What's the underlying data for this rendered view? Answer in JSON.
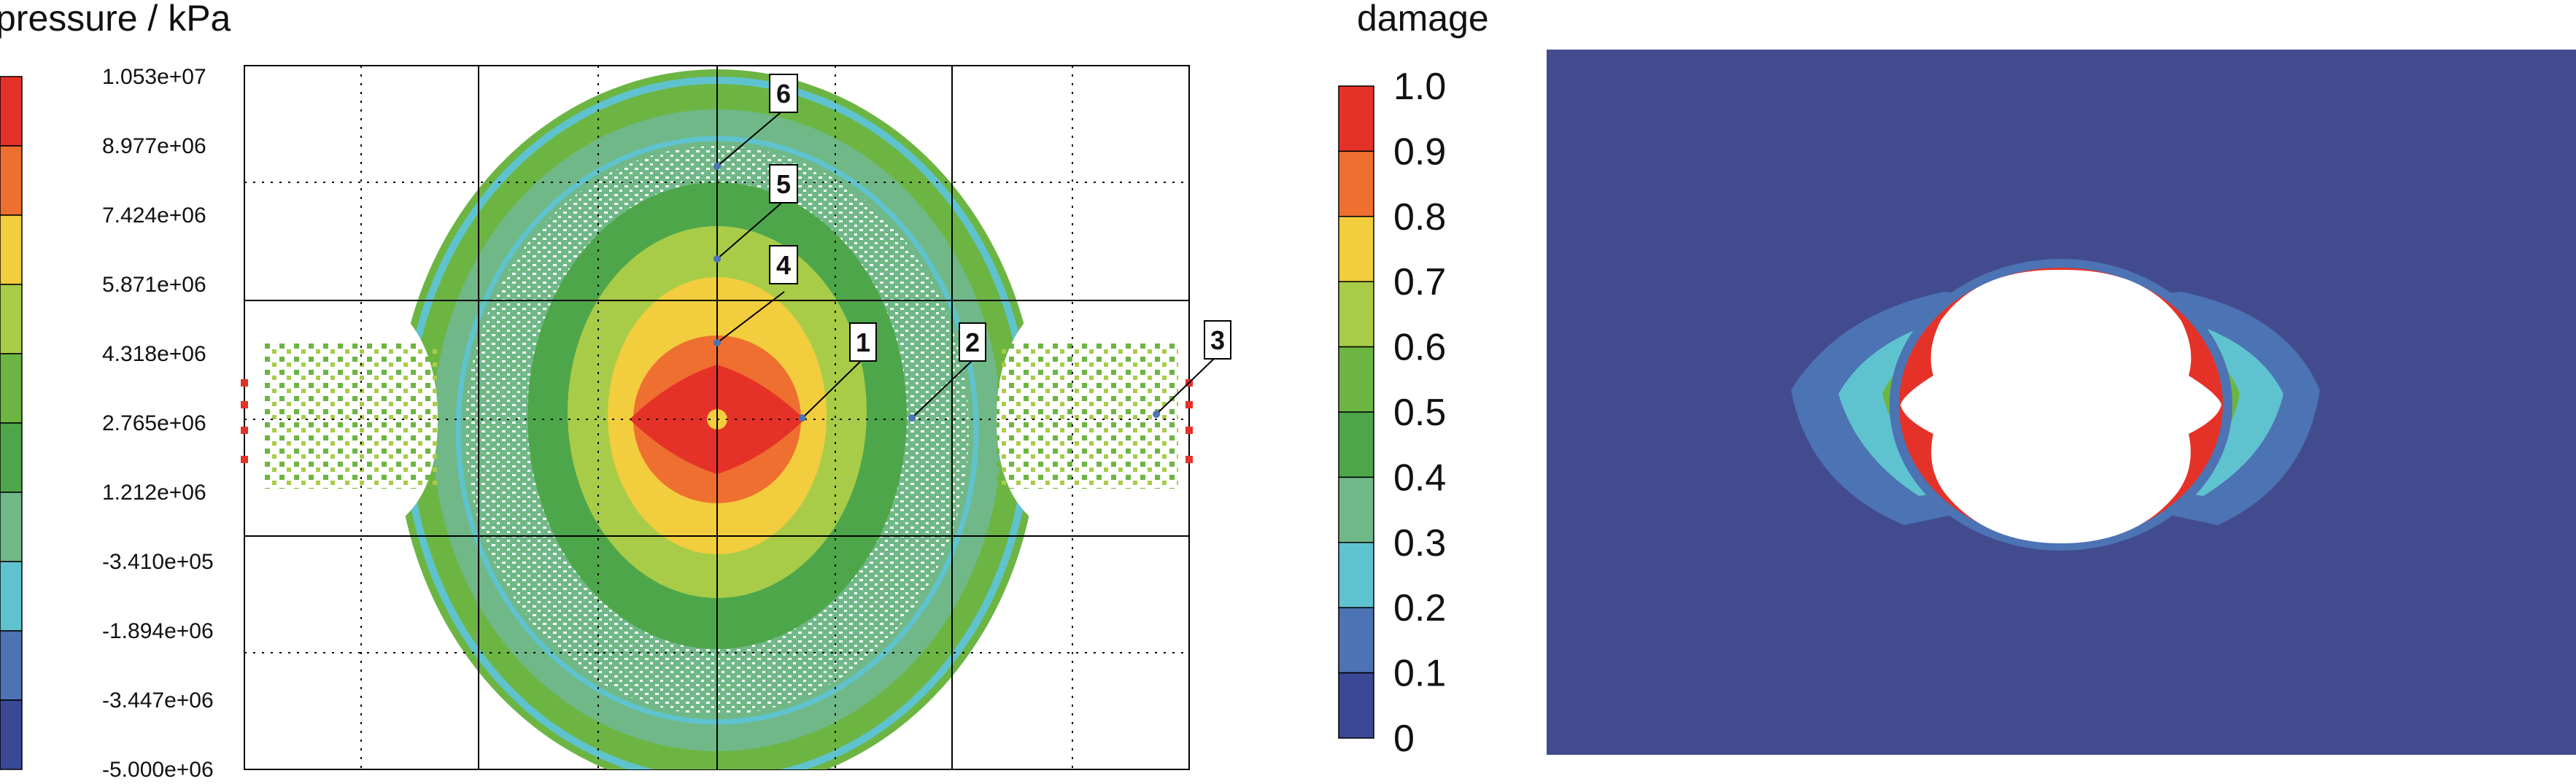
{
  "left_panel": {
    "title": "pressure / kPa",
    "colorbar": {
      "ticks": [
        "1.053e+07",
        "8.977e+06",
        "7.424e+06",
        "5.871e+06",
        "4.318e+06",
        "2.765e+06",
        "1.212e+06",
        "-3.410e+05",
        "-1.894e+06",
        "-3.447e+06",
        "-5.000e+06"
      ],
      "colors": [
        "#e53228",
        "#ee6f30",
        "#f2cd3d",
        "#a8cc48",
        "#6cb543",
        "#4ea64a",
        "#70b887",
        "#5fc3cf",
        "#4c73b4",
        "#3a4896"
      ]
    },
    "markers": [
      "1",
      "2",
      "3",
      "4",
      "5",
      "6"
    ]
  },
  "right_panel": {
    "title": "damage",
    "colorbar": {
      "ticks": [
        "1.0",
        "0.9",
        "0.8",
        "0.7",
        "0.6",
        "0.5",
        "0.4",
        "0.3",
        "0.2",
        "0.1",
        "0"
      ],
      "colors": [
        "#e53228",
        "#ee6f30",
        "#f2cd3d",
        "#a8cc48",
        "#6cb543",
        "#4ea64a",
        "#70b887",
        "#5fc3cf",
        "#4c73b4",
        "#3a4896"
      ]
    },
    "background_color": "#434b8f"
  }
}
